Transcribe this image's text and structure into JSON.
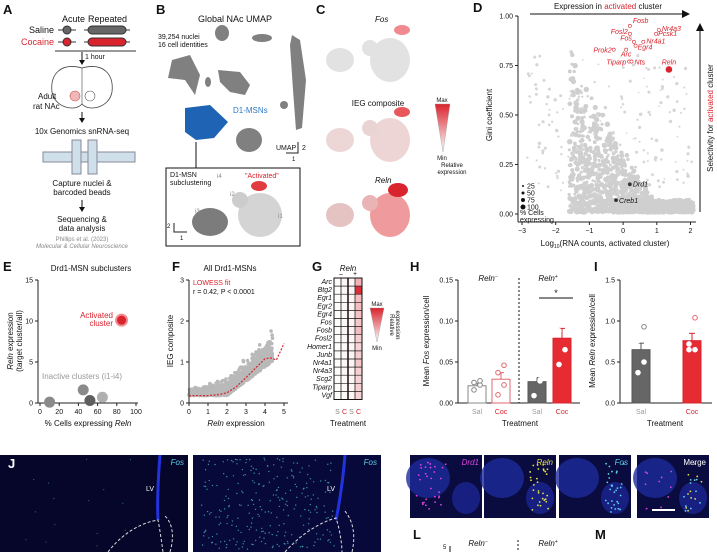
{
  "colors": {
    "red": "#d9232d",
    "saline_grey": "#666666",
    "d1_blue": "#1f63b5",
    "light_grey": "#c8c8c8"
  },
  "panel_A": {
    "label": "A",
    "acute": "Acute",
    "repeated": "Repeated",
    "saline": "Saline",
    "cocaine": "Cocaine",
    "time": "1 hour",
    "tissue_1": "Adult",
    "tissue_2": "rat NAc",
    "method": "10x Genomics snRNA-seq",
    "capture_1": "Capture nuclei &",
    "capture_2": "barcoded beads",
    "seq_1": "Sequencing &",
    "seq_2": "data analysis",
    "citation_1": "Phillips et al. (2023)",
    "citation_2": "Molecular & Cellular Neuroscience"
  },
  "panel_B": {
    "label": "B",
    "title": "Global NAc UMAP",
    "nuclei": "39,254 nuclei",
    "identities": "16 cell identities",
    "d1": "D1-MSNs",
    "umap": "UMAP",
    "scale_y": "2",
    "scale_x": "1",
    "inset_1": "D1-MSN",
    "inset_2": "subclustering",
    "activated": "\"Activated\"",
    "i1": "i1",
    "i2": "i2",
    "i3": "i3",
    "i4": "i4",
    "inset_scale_y": "2",
    "inset_scale_x": "1"
  },
  "panel_C": {
    "label": "C",
    "fos": "Fos",
    "ieg": "IEG composite",
    "reln": "Reln",
    "max": "Max",
    "min": "Min",
    "legend_1": "Relative",
    "legend_2": "expression"
  },
  "chart_data": [
    {
      "panel": "D",
      "label": "D",
      "type": "scatter",
      "xlabel": "Log10(RNA counts, activated cluster)",
      "xlabel_main": "Log",
      "xlabel_sub": "10",
      "xlabel_rest": "(RNA counts, activated cluster)",
      "ylabel": "Gini coefficient",
      "top_arrow": [
        "Expression in ",
        "activated",
        " cluster"
      ],
      "right_arrow": [
        "Selectivity for ",
        "activated",
        " cluster"
      ],
      "xlim": [
        -3,
        2.3
      ],
      "ylim": [
        0,
        1
      ],
      "xticks": [
        "−3",
        "−2",
        "−1",
        "0",
        "1",
        "2"
      ],
      "xtick_values": [
        -3,
        -2,
        -1,
        0,
        1,
        2
      ],
      "yticks": [
        "0.00",
        "0.25",
        "0.50",
        "0.75",
        "1.00"
      ],
      "ytick_values": [
        0,
        0.25,
        0.5,
        0.75,
        1
      ],
      "size_legend": [
        "25",
        "50",
        "75",
        "100"
      ],
      "size_legend_title_1": "% Cells",
      "size_legend_title_2": "expressing",
      "labeled_genes": [
        {
          "name": "Fosb",
          "x": 0.2,
          "y": 0.95,
          "highlight": true
        },
        {
          "name": "Fosl2",
          "x": 0.2,
          "y": 0.91,
          "highlight": true
        },
        {
          "name": "Pcsk1",
          "x": 0.98,
          "y": 0.91,
          "highlight": true
        },
        {
          "name": "Nr4a3",
          "x": 1.06,
          "y": 0.93,
          "highlight": true
        },
        {
          "name": "Fos",
          "x": 0.32,
          "y": 0.87,
          "highlight": true
        },
        {
          "name": "Nr4a1",
          "x": 0.6,
          "y": 0.87,
          "highlight": true
        },
        {
          "name": "Egr4",
          "x": 0.37,
          "y": 0.85,
          "highlight": true
        },
        {
          "name": "Arc",
          "x": 0.09,
          "y": 0.83,
          "highlight": true
        },
        {
          "name": "Prok2",
          "x": -0.28,
          "y": 0.83,
          "highlight": true
        },
        {
          "name": "Tiparp",
          "x": 0.18,
          "y": 0.77,
          "highlight": true
        },
        {
          "name": "Nts",
          "x": 0.25,
          "y": 0.77,
          "highlight": true
        },
        {
          "name": "Reln",
          "x": 1.36,
          "y": 0.73,
          "highlight": true
        },
        {
          "name": "Drd1",
          "x": 0.2,
          "y": 0.15,
          "highlight": false
        },
        {
          "name": "Creb1",
          "x": -0.21,
          "y": 0.07,
          "highlight": false
        }
      ]
    },
    {
      "panel": "E",
      "label": "E",
      "type": "scatter",
      "title": "Drd1-MSN subclusters",
      "xlabel": "% Cells expressing ",
      "xlabel_it": "Reln",
      "ylabel_it": "Reln",
      "ylabel_rest": " expression",
      "ylabel_2": "(target cluster/all)",
      "xlim": [
        0,
        100
      ],
      "ylim": [
        0,
        15
      ],
      "xticks": [
        "0",
        "20",
        "40",
        "60",
        "80",
        "100"
      ],
      "xtick_values": [
        0,
        20,
        40,
        60,
        80,
        100
      ],
      "yticks": [
        "0",
        "5",
        "10",
        "15"
      ],
      "ytick_values": [
        0,
        5,
        10,
        15
      ],
      "activated_label_1": "Activated",
      "activated_label_2": "cluster",
      "inactive_label": "Inactive clusters (i1-i4)",
      "points": [
        {
          "name": "Activated",
          "x": 85,
          "y": 10.1,
          "color": "#d9232d"
        },
        {
          "name": "i1",
          "x": 10,
          "y": 0.1,
          "color": "#8a8a8a"
        },
        {
          "name": "i2",
          "x": 45,
          "y": 1.6,
          "color": "#8a8a8a"
        },
        {
          "name": "i3",
          "x": 52,
          "y": 0.3,
          "color": "#5e5e5e"
        },
        {
          "name": "i4",
          "x": 65,
          "y": 0.7,
          "color": "#b0b0b0"
        }
      ]
    },
    {
      "panel": "F",
      "label": "F",
      "type": "scatter",
      "title": "All Drd1-MSNs",
      "xlabel_it": "Reln",
      "xlabel_rest": " expression",
      "ylabel": "IEG composite",
      "fit_label": "LOWESS fit",
      "stat": "r = 0.42, P < 0.0001",
      "xlim": [
        0,
        5
      ],
      "ylim": [
        0,
        3
      ],
      "xticks": [
        "0",
        "1",
        "2",
        "3",
        "4",
        "5"
      ],
      "xtick_values": [
        0,
        1,
        2,
        3,
        4,
        5
      ],
      "yticks": [
        "0",
        "1",
        "2",
        "3"
      ],
      "ytick_values": [
        0,
        1,
        2,
        3
      ],
      "lowess": {
        "x": [
          0,
          0.5,
          1,
          1.5,
          2,
          2.5,
          3,
          3.5,
          4,
          4.3,
          4.6,
          5
        ],
        "y": [
          0.18,
          0.18,
          0.18,
          0.2,
          0.25,
          0.4,
          0.62,
          0.85,
          1.08,
          1.1,
          1.05,
          1.45
        ]
      }
    },
    {
      "panel": "G",
      "label": "G",
      "type": "heatmap",
      "header": "Reln",
      "group_neg": "–",
      "group_pos": "+",
      "genes": [
        "Arc",
        "Btg2",
        "Egr1",
        "Egr2",
        "Egr4",
        "Fos",
        "Fosb",
        "Fosl2",
        "Homer1",
        "Junb",
        "Nr4a1",
        "Nr4a3",
        "Scg2",
        "Tiparp",
        "Vgf"
      ],
      "columns": [
        "S",
        "C",
        "S",
        "C"
      ],
      "xlabel": "Treatment",
      "max": "Max",
      "min": "Min",
      "legend_1": "Relative",
      "legend_2": "expression",
      "values": [
        [
          0.02,
          0.05,
          0.05,
          0.35
        ],
        [
          0.02,
          0.05,
          0.06,
          0.95
        ],
        [
          0.02,
          0.04,
          0.05,
          0.3
        ],
        [
          0.02,
          0.05,
          0.05,
          0.3
        ],
        [
          0.02,
          0.04,
          0.05,
          0.28
        ],
        [
          0.02,
          0.04,
          0.05,
          0.25
        ],
        [
          0.02,
          0.05,
          0.06,
          0.3
        ],
        [
          0.02,
          0.04,
          0.05,
          0.22
        ],
        [
          0.02,
          0.04,
          0.05,
          0.2
        ],
        [
          0.02,
          0.04,
          0.05,
          0.22
        ],
        [
          0.02,
          0.04,
          0.05,
          0.25
        ],
        [
          0.02,
          0.05,
          0.05,
          0.22
        ],
        [
          0.02,
          0.04,
          0.05,
          0.2
        ],
        [
          0.02,
          0.04,
          0.05,
          0.22
        ],
        [
          0.02,
          0.04,
          0.05,
          0.2
        ]
      ]
    },
    {
      "panel": "H",
      "label": "H",
      "type": "bar",
      "ylabel_1": "Mean ",
      "ylabel_it": "Fos",
      "ylabel_2": " expression/cell",
      "xlabel": "Treatment",
      "group_neg": "Reln",
      "group_neg_sup": "−",
      "group_pos": "Reln",
      "group_pos_sup": "+",
      "significance": "*",
      "ylim": [
        0,
        0.15
      ],
      "yticks": [
        "0.00",
        "0.05",
        "0.10",
        "0.15"
      ],
      "ytick_values": [
        0,
        0.05,
        0.1,
        0.15
      ],
      "bars": [
        {
          "category": "Sal",
          "group": "Reln−",
          "value": 0.021,
          "sem": 0.003,
          "points": [
            0.016,
            0.022,
            0.025,
            0.027
          ]
        },
        {
          "category": "Coc",
          "group": "Reln−",
          "value": 0.029,
          "sem": 0.008,
          "points": [
            0.01,
            0.022,
            0.037,
            0.046
          ]
        },
        {
          "category": "Sal",
          "group": "Reln+",
          "value": 0.026,
          "sem": 0.005,
          "points": [
            0.009,
            0.027,
            0.031,
            0.034
          ]
        },
        {
          "category": "Coc",
          "group": "Reln+",
          "value": 0.079,
          "sem": 0.012,
          "points": [
            0.047,
            0.065,
            0.088,
            0.117
          ]
        }
      ]
    },
    {
      "panel": "I",
      "label": "I",
      "type": "bar",
      "ylabel_1": "Mean ",
      "ylabel_it": "Reln",
      "ylabel_2": " expression/cell",
      "xlabel": "Treatment",
      "ylim": [
        0,
        1.5
      ],
      "yticks": [
        "0.0",
        "0.5",
        "1.0",
        "1.5"
      ],
      "ytick_values": [
        0,
        0.5,
        1,
        1.5
      ],
      "bars": [
        {
          "category": "Sal",
          "value": 0.65,
          "sem": 0.08,
          "points": [
            0.37,
            0.5,
            0.76,
            0.93
          ]
        },
        {
          "category": "Coc",
          "value": 0.76,
          "sem": 0.09,
          "points": [
            0.65,
            0.65,
            0.72,
            1.04
          ]
        }
      ]
    }
  ],
  "panel_J": {
    "label": "J",
    "fos_1": "Fos",
    "fos_2": "Fos",
    "lv_1": "LV",
    "lv_2": "LV"
  },
  "panel_K": {
    "label": "K",
    "channels": [
      "Drd1",
      "Reln",
      "Fos",
      "Merge"
    ]
  },
  "panel_L": {
    "label": "L",
    "tick": "5",
    "group_neg": "Reln",
    "group_neg_sup": "−",
    "group_pos": "Reln",
    "group_pos_sup": "+"
  },
  "panel_M": {
    "label": "M"
  }
}
